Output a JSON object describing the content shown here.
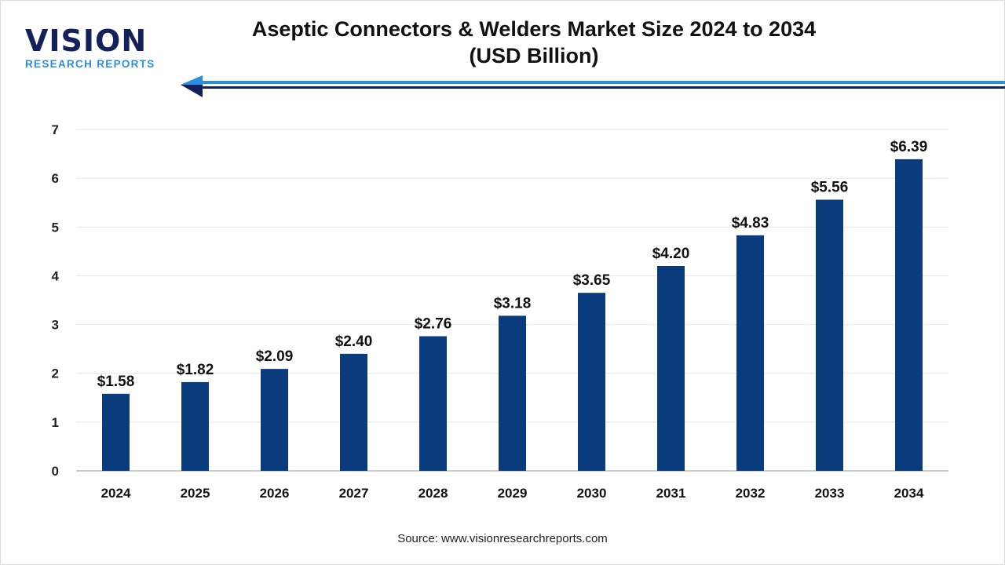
{
  "logo": {
    "main": "VISION",
    "sub": "RESEARCH REPORTS"
  },
  "source": "Source: www.visionresearchreports.com",
  "colors": {
    "bar": "#0a3c7d",
    "arrow_light": "#2a8fe0",
    "arrow_dark": "#14205a",
    "grid": "#e6e6e6"
  },
  "chart_data": {
    "type": "bar",
    "title": "Aseptic Connectors & Welders Market Size 2024 to 2034",
    "subtitle": "(USD Billion)",
    "xlabel": "",
    "ylabel": "",
    "categories": [
      "2024",
      "2025",
      "2026",
      "2027",
      "2028",
      "2029",
      "2030",
      "2031",
      "2032",
      "2033",
      "2034"
    ],
    "values": [
      1.58,
      1.82,
      2.09,
      2.4,
      2.76,
      3.18,
      3.65,
      4.2,
      4.83,
      5.56,
      6.39
    ],
    "data_labels": [
      "$1.58",
      "$1.82",
      "$2.09",
      "$2.40",
      "$2.76",
      "$3.18",
      "$3.65",
      "$4.20",
      "$4.83",
      "$5.56",
      "$6.39"
    ],
    "ylim": [
      0,
      7
    ],
    "yticks": [
      "0",
      "1",
      "2",
      "3",
      "4",
      "5",
      "6",
      "7"
    ],
    "grid": true,
    "legend": "none"
  }
}
